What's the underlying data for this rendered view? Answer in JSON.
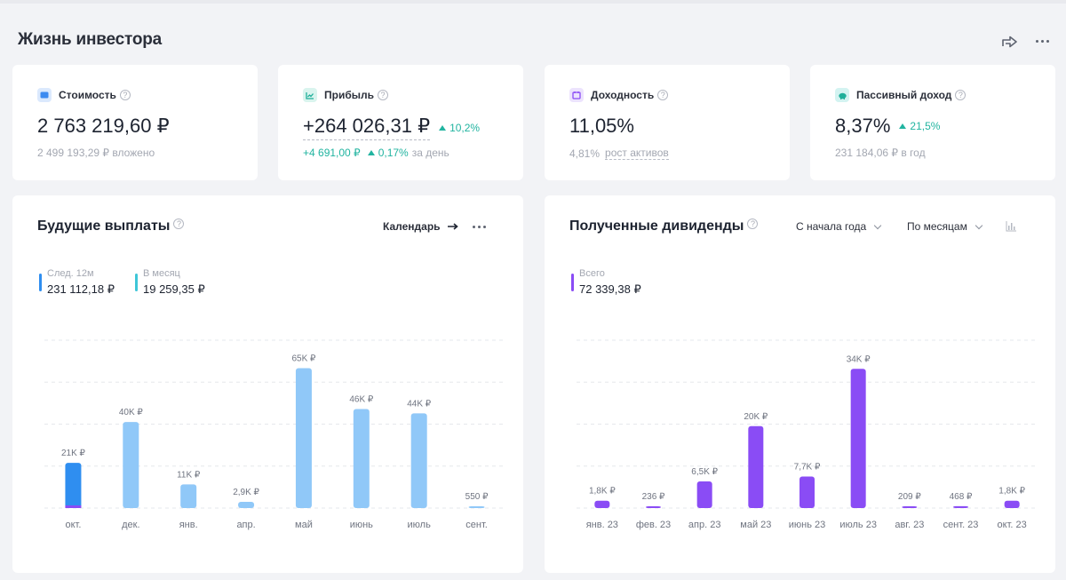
{
  "page": {
    "title": "Жизнь инвестора"
  },
  "stats": [
    {
      "label": "Стоимость",
      "icon": "wallet-icon",
      "value": "2 763 219,60 ₽",
      "sub": "2 499 193,29 ₽ вложено"
    },
    {
      "label": "Прибыль",
      "icon": "chart-line-icon",
      "value": "+264 026,31 ₽",
      "delta": "10,2%",
      "sub_value": "+4 691,00 ₽",
      "sub_delta": "0,17%",
      "sub_suffix": "за день"
    },
    {
      "label": "Доходность",
      "icon": "calendar-icon",
      "value": "11,05%",
      "sub_value": "4,81%",
      "sub_link": "рост активов"
    },
    {
      "label": "Пассивный доход",
      "icon": "piggy-bank-icon",
      "value": "8,37%",
      "delta": "21,5%",
      "sub": "231 184,06 ₽ в год"
    }
  ],
  "future_payments": {
    "title": "Будущие выплаты",
    "calendar_link": "Календарь",
    "legend": [
      {
        "label": "След. 12м",
        "value": "231 112,18 ₽",
        "color": "#2f8ef0"
      },
      {
        "label": "В месяц",
        "value": "19 259,35 ₽",
        "color": "#3ec6d8"
      }
    ]
  },
  "dividends": {
    "title": "Полученные дивиденды",
    "period_select": "С начала года",
    "group_select": "По месяцам",
    "legend": [
      {
        "label": "Всего",
        "value": "72 339,38 ₽",
        "color": "#8a4cf5"
      }
    ]
  },
  "colors": {
    "accent_teal": "#21b4a0",
    "bar_blue": "#90c8f8",
    "bar_blue_dark": "#2f8ef0",
    "bar_purple": "#8a4cf5",
    "gridline": "#e6e8ec"
  },
  "chart_data": [
    {
      "type": "bar",
      "title": "Будущие выплаты",
      "categories": [
        "окт.",
        "дек.",
        "янв.",
        "апр.",
        "май",
        "июнь",
        "июль",
        "сент."
      ],
      "values": [
        21000,
        40000,
        11000,
        2900,
        65000,
        46000,
        44000,
        550
      ],
      "labels": [
        "21K ₽",
        "40K ₽",
        "11K ₽",
        "2,9K ₽",
        "65K ₽",
        "46K ₽",
        "44K ₽",
        "550 ₽"
      ],
      "ylim": [
        0,
        78000
      ],
      "grid": true,
      "highlight_index": 0
    },
    {
      "type": "bar",
      "title": "Полученные дивиденды",
      "categories": [
        "янв. 23",
        "фев. 23",
        "апр. 23",
        "май 23",
        "июнь 23",
        "июль 23",
        "авг. 23",
        "сент. 23",
        "окт. 23"
      ],
      "values": [
        1800,
        236,
        6500,
        20000,
        7700,
        34000,
        209,
        468,
        1800
      ],
      "labels": [
        "1,8K ₽",
        "236 ₽",
        "6,5K ₽",
        "20K ₽",
        "7,7K ₽",
        "34K ₽",
        "209 ₽",
        "468 ₽",
        "1,8K ₽"
      ],
      "ylim": [
        0,
        41000
      ],
      "grid": true
    }
  ]
}
